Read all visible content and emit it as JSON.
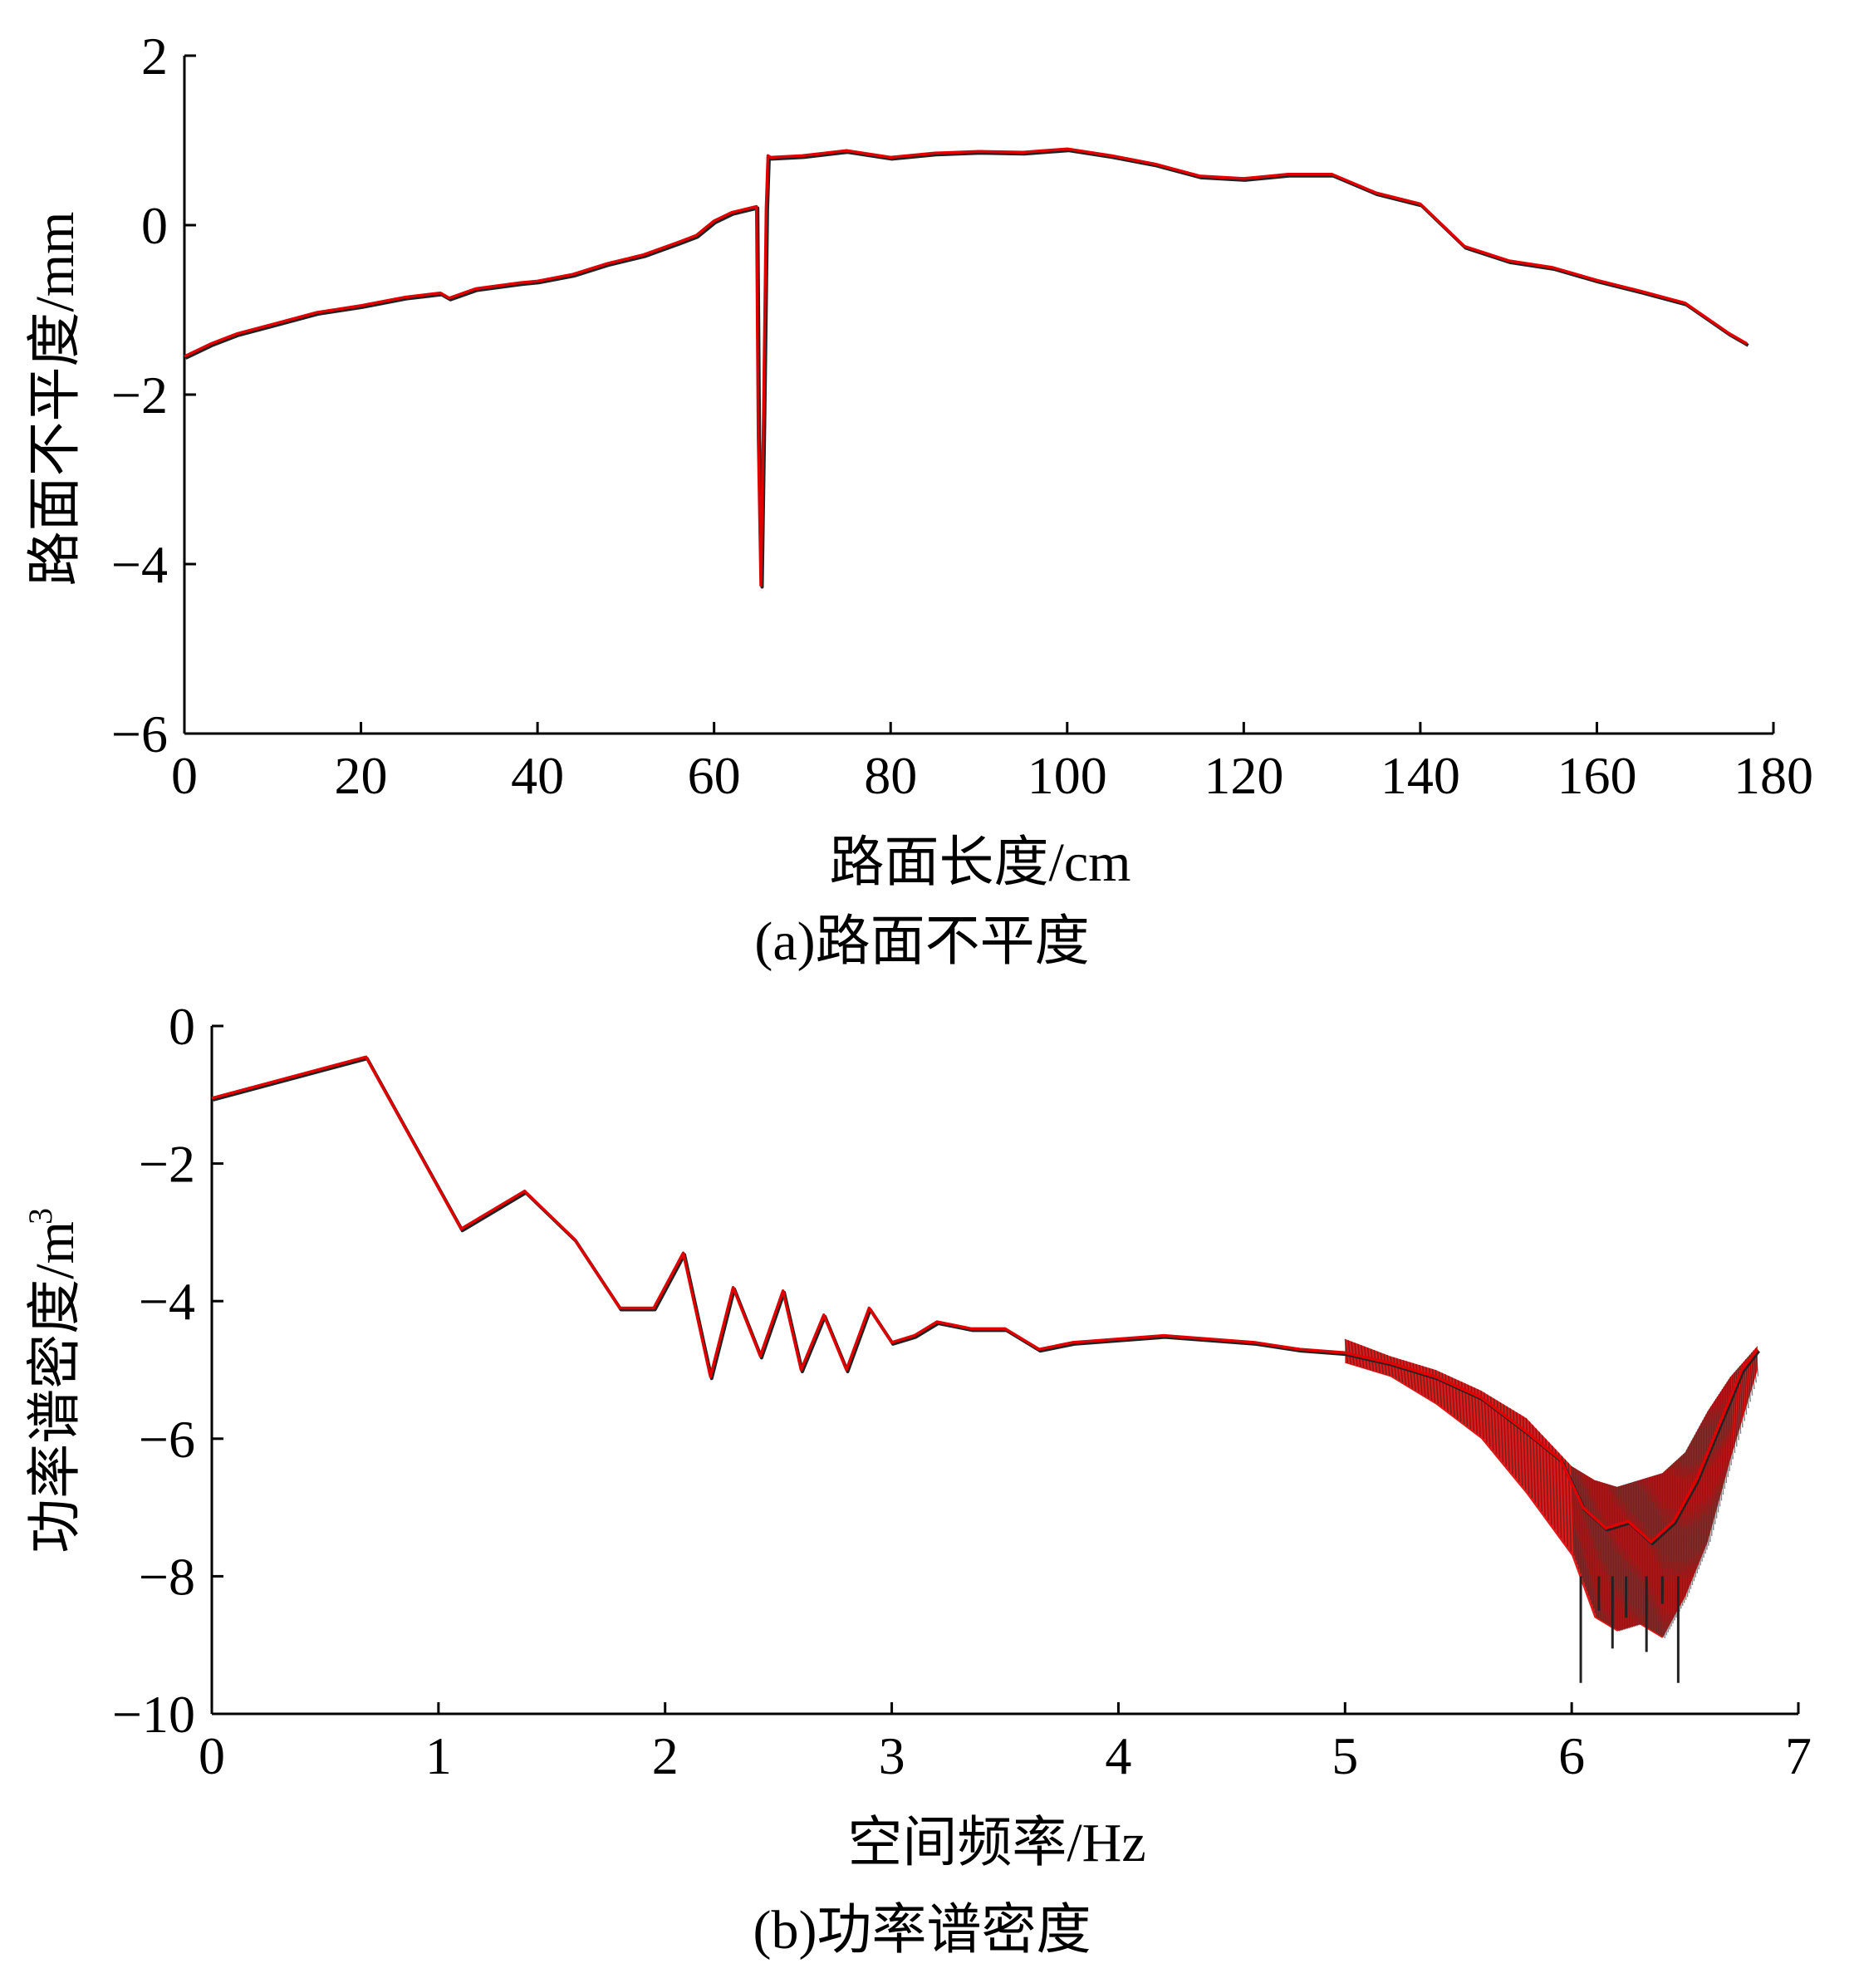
{
  "chart_data": [
    {
      "type": "line",
      "caption": "(a)路面不平度",
      "xlabel": "路面长度/cm",
      "ylabel": "路面不平度/mm",
      "xlim": [
        0,
        180
      ],
      "ylim": [
        -6,
        2
      ],
      "xticks": [
        0,
        20,
        40,
        60,
        80,
        100,
        120,
        140,
        160,
        180
      ],
      "yticks": [
        2,
        0,
        -2,
        -4,
        -6
      ],
      "grid": false,
      "line_color": "#e00000",
      "shadow_color": "#222222",
      "series": [
        {
          "x": [
            0,
            3,
            6,
            10,
            15,
            20,
            25,
            29,
            30,
            33,
            38,
            40,
            44,
            48,
            52,
            56,
            58,
            60,
            62,
            64,
            64.8,
            65.0,
            65.3,
            65.6,
            65.9,
            66.1,
            66.4,
            70,
            75,
            80,
            85,
            90,
            95,
            100,
            105,
            110,
            115,
            120,
            125,
            130,
            135,
            140,
            142,
            145,
            150,
            155,
            160,
            165,
            170,
            175,
            177
          ],
          "y": [
            -1.55,
            -1.4,
            -1.28,
            -1.17,
            -1.03,
            -0.95,
            -0.85,
            -0.8,
            -0.86,
            -0.75,
            -0.68,
            -0.66,
            -0.58,
            -0.45,
            -0.35,
            -0.2,
            -0.12,
            0.05,
            0.15,
            0.2,
            0.22,
            -2.5,
            -4.25,
            -2.2,
            0.2,
            0.82,
            0.8,
            0.82,
            0.88,
            0.8,
            0.85,
            0.87,
            0.86,
            0.9,
            0.82,
            0.72,
            0.58,
            0.55,
            0.6,
            0.6,
            0.38,
            0.25,
            0.05,
            -0.25,
            -0.42,
            -0.5,
            -0.65,
            -0.78,
            -0.92,
            -1.28,
            -1.4
          ]
        }
      ]
    },
    {
      "type": "line",
      "caption": "(b)功率谱密度",
      "xlabel": "空间频率/Hz",
      "ylabel": "功率谱密度/m",
      "ylabel_superscript": "3",
      "xlim": [
        0,
        7
      ],
      "ylim": [
        -10,
        0
      ],
      "xticks": [
        0,
        1,
        2,
        3,
        4,
        5,
        6,
        7
      ],
      "yticks": [
        0,
        -2,
        -4,
        -6,
        -8,
        -10
      ],
      "grid": false,
      "line_color": "#e00000",
      "shadow_color": "#222222",
      "series": [
        {
          "x": [
            0,
            0.68,
            1.1,
            1.38,
            1.6,
            1.8,
            1.95,
            2.08,
            2.2,
            2.3,
            2.42,
            2.52,
            2.6,
            2.7,
            2.8,
            2.9,
            3.0,
            3.1,
            3.2,
            3.35,
            3.5,
            3.65,
            3.8,
            4.0,
            4.2,
            4.4,
            4.6,
            4.8,
            5.0,
            5.2,
            5.4,
            5.6,
            5.8,
            5.95,
            6.05,
            6.15,
            6.25,
            6.35,
            6.45,
            6.55,
            6.65,
            6.75,
            6.82
          ],
          "y": [
            -1.05,
            -0.45,
            -2.95,
            -2.4,
            -3.1,
            -4.1,
            -4.1,
            -3.3,
            -5.1,
            -3.8,
            -4.8,
            -3.85,
            -5.0,
            -4.2,
            -5.0,
            -4.1,
            -4.6,
            -4.5,
            -4.3,
            -4.4,
            -4.4,
            -4.7,
            -4.6,
            -4.55,
            -4.5,
            -4.55,
            -4.6,
            -4.7,
            -4.75,
            -4.9,
            -5.1,
            -5.4,
            -5.9,
            -6.3,
            -7.0,
            -7.3,
            -7.2,
            -7.5,
            -7.2,
            -6.6,
            -5.8,
            -5.0,
            -4.7
          ]
        }
      ],
      "noise_band": {
        "x": [
          5.0,
          5.2,
          5.4,
          5.6,
          5.8,
          6.0,
          6.1,
          6.2,
          6.3,
          6.4,
          6.5,
          6.6,
          6.7,
          6.82
        ],
        "upper": [
          -4.55,
          -4.8,
          -5.0,
          -5.3,
          -5.7,
          -6.4,
          -6.6,
          -6.7,
          -6.6,
          -6.5,
          -6.2,
          -5.6,
          -5.1,
          -4.65
        ],
        "lower": [
          -4.9,
          -5.1,
          -5.5,
          -6.0,
          -6.8,
          -7.7,
          -8.6,
          -8.8,
          -8.7,
          -8.9,
          -8.3,
          -7.5,
          -6.3,
          -5.0
        ]
      },
      "spikes": {
        "x": [
          6.04,
          6.12,
          6.18,
          6.24,
          6.33,
          6.4,
          6.47
        ],
        "y": [
          -9.55,
          -8.5,
          -9.05,
          -8.6,
          -9.1,
          -8.4,
          -9.55
        ]
      }
    }
  ]
}
